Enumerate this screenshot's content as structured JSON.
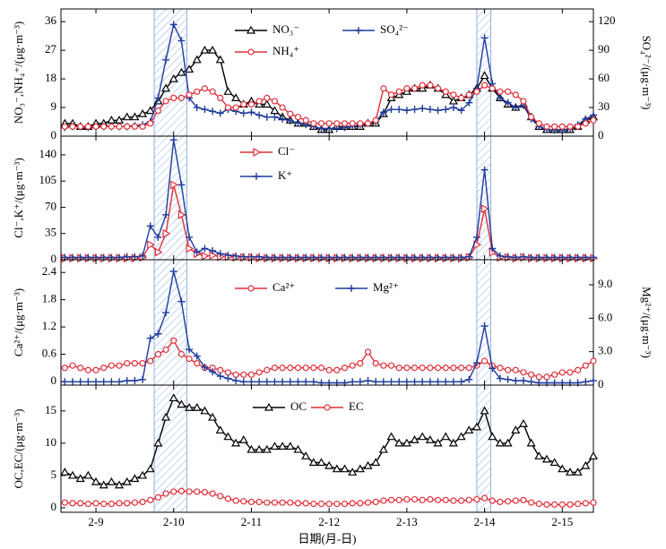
{
  "shaded_periods": [
    [
      9.75,
      10.17
    ],
    [
      13.9,
      14.08
    ]
  ],
  "chart_data": [
    {
      "type": "line",
      "xlim": [
        8.55,
        15.4
      ],
      "x": [
        8.6,
        8.7,
        8.8,
        8.9,
        9.0,
        9.1,
        9.2,
        9.3,
        9.4,
        9.5,
        9.6,
        9.7,
        9.8,
        9.9,
        10.0,
        10.1,
        10.2,
        10.3,
        10.4,
        10.5,
        10.6,
        10.7,
        10.8,
        10.9,
        11.0,
        11.1,
        11.2,
        11.3,
        11.4,
        11.5,
        11.6,
        11.7,
        11.8,
        11.9,
        12.0,
        12.1,
        12.2,
        12.3,
        12.4,
        12.5,
        12.6,
        12.7,
        12.8,
        12.9,
        13.0,
        13.1,
        13.2,
        13.3,
        13.4,
        13.5,
        13.6,
        13.7,
        13.8,
        13.9,
        14.0,
        14.1,
        14.2,
        14.3,
        14.4,
        14.5,
        14.6,
        14.7,
        14.8,
        14.9,
        15.0,
        15.1,
        15.2,
        15.3,
        15.4
      ],
      "ylabel": "NO₃⁻,NH₄⁺/(μg·m⁻³)",
      "y2label": "SO₄²⁻/(μg·m⁻³)",
      "ylim": [
        0,
        40
      ],
      "yticks": [
        0,
        9,
        18,
        27,
        36
      ],
      "y2lim": [
        0,
        133.3
      ],
      "y2ticks": [
        0,
        30,
        60,
        90,
        120
      ],
      "series": [
        {
          "name": "NO₃⁻",
          "color": "#000000",
          "marker": "triangle",
          "values": [
            4,
            4,
            3,
            3,
            4,
            4,
            5,
            5,
            6,
            6,
            7,
            8,
            11,
            15,
            18,
            20,
            21,
            24,
            27,
            27,
            24,
            14,
            12,
            10,
            11,
            10,
            10,
            8,
            6,
            5,
            4,
            4,
            3,
            2,
            2,
            3,
            3,
            3,
            3,
            4,
            4,
            7,
            12,
            13,
            14,
            15,
            15,
            16,
            15,
            13,
            11,
            12,
            13,
            15,
            19,
            15,
            12,
            10,
            9,
            10,
            6,
            3,
            2,
            2,
            2,
            2,
            3,
            5,
            6
          ]
        },
        {
          "name": "SO₄²⁻",
          "color": "#1f3c9c",
          "marker": "plus",
          "axis": "y2",
          "values": [
            9,
            10,
            10,
            9,
            9,
            10,
            10,
            10,
            10,
            11,
            12,
            15,
            40,
            80,
            117,
            100,
            40,
            30,
            28,
            26,
            24,
            28,
            26,
            24,
            25,
            22,
            20,
            20,
            18,
            16,
            14,
            12,
            10,
            8,
            8,
            8,
            9,
            10,
            12,
            14,
            15,
            25,
            28,
            28,
            27,
            28,
            29,
            28,
            27,
            28,
            30,
            27,
            35,
            50,
            103,
            55,
            40,
            35,
            30,
            32,
            18,
            10,
            7,
            6,
            6,
            8,
            12,
            18,
            22
          ]
        },
        {
          "name": "NH₄⁺",
          "color": "#e0303a",
          "marker": "circle",
          "values": [
            3,
            3,
            3,
            3,
            3,
            3,
            3,
            3,
            3,
            3,
            3,
            4,
            8,
            11,
            12,
            12,
            13,
            14,
            15,
            14,
            12,
            9,
            9,
            10,
            10,
            11,
            12,
            11,
            9,
            7,
            6,
            5,
            4,
            4,
            4,
            4,
            4,
            4,
            4,
            4,
            5,
            15,
            13,
            14,
            15,
            15,
            16,
            16,
            15,
            14,
            13,
            12,
            13,
            14,
            16,
            15,
            14,
            14,
            13,
            11,
            6,
            4,
            3,
            3,
            3,
            3,
            3,
            4,
            5
          ]
        }
      ]
    },
    {
      "type": "line",
      "xlim": [
        8.55,
        15.4
      ],
      "x": [
        8.6,
        8.7,
        8.8,
        8.9,
        9.0,
        9.1,
        9.2,
        9.3,
        9.4,
        9.5,
        9.6,
        9.7,
        9.8,
        9.9,
        10.0,
        10.1,
        10.2,
        10.3,
        10.4,
        10.5,
        10.6,
        10.7,
        10.8,
        10.9,
        11.0,
        11.1,
        11.2,
        11.3,
        11.4,
        11.5,
        11.6,
        11.7,
        11.8,
        11.9,
        12.0,
        12.1,
        12.2,
        12.3,
        12.4,
        12.5,
        12.6,
        12.7,
        12.8,
        12.9,
        13.0,
        13.1,
        13.2,
        13.3,
        13.4,
        13.5,
        13.6,
        13.7,
        13.8,
        13.9,
        14.0,
        14.1,
        14.2,
        14.3,
        14.4,
        14.5,
        14.6,
        14.7,
        14.8,
        14.9,
        15.0,
        15.1,
        15.2,
        15.3,
        15.4
      ],
      "ylabel": "Cl⁻,K⁺/(μg·m⁻³)",
      "ylim": [
        0,
        165
      ],
      "yticks": [
        0,
        35,
        70,
        105,
        140
      ],
      "series": [
        {
          "name": "Cl⁻",
          "color": "#e0303a",
          "marker": "triangle-right",
          "values": [
            2,
            2,
            2,
            2,
            2,
            2,
            2,
            2,
            2,
            2,
            3,
            20,
            10,
            35,
            100,
            60,
            15,
            8,
            5,
            6,
            4,
            4,
            3,
            3,
            3,
            2,
            2,
            2,
            2,
            2,
            2,
            2,
            2,
            2,
            2,
            2,
            2,
            2,
            2,
            2,
            2,
            2,
            2,
            2,
            2,
            2,
            2,
            2,
            2,
            2,
            2,
            2,
            3,
            20,
            68,
            10,
            3,
            3,
            2,
            3,
            2,
            2,
            2,
            2,
            2,
            2,
            2,
            2,
            2
          ]
        },
        {
          "name": "K⁺",
          "color": "#1f3c9c",
          "marker": "plus",
          "values": [
            3,
            3,
            3,
            3,
            3,
            3,
            3,
            3,
            4,
            4,
            5,
            45,
            30,
            60,
            160,
            100,
            30,
            10,
            15,
            12,
            8,
            6,
            5,
            4,
            4,
            4,
            3,
            3,
            3,
            3,
            3,
            3,
            3,
            3,
            3,
            3,
            3,
            3,
            3,
            3,
            3,
            3,
            3,
            3,
            3,
            3,
            3,
            3,
            3,
            3,
            3,
            3,
            4,
            30,
            120,
            15,
            5,
            4,
            3,
            4,
            3,
            3,
            3,
            3,
            3,
            3,
            3,
            3,
            3
          ]
        }
      ]
    },
    {
      "type": "line",
      "xlim": [
        8.55,
        15.4
      ],
      "x": [
        8.6,
        8.7,
        8.8,
        8.9,
        9.0,
        9.1,
        9.2,
        9.3,
        9.4,
        9.5,
        9.6,
        9.7,
        9.8,
        9.9,
        10.0,
        10.1,
        10.2,
        10.3,
        10.4,
        10.5,
        10.6,
        10.7,
        10.8,
        10.9,
        11.0,
        11.1,
        11.2,
        11.3,
        11.4,
        11.5,
        11.6,
        11.7,
        11.8,
        11.9,
        12.0,
        12.1,
        12.2,
        12.3,
        12.4,
        12.5,
        12.6,
        12.7,
        12.8,
        12.9,
        13.0,
        13.1,
        13.2,
        13.3,
        13.4,
        13.5,
        13.6,
        13.7,
        13.8,
        13.9,
        14.0,
        14.1,
        14.2,
        14.3,
        14.4,
        14.5,
        14.6,
        14.7,
        14.8,
        14.9,
        15.0,
        15.1,
        15.2,
        15.3,
        15.4
      ],
      "ylabel": "Ca²⁺/(μg·m⁻³)",
      "y2label": "Mg²⁺/(μg·m⁻³)",
      "ylim": [
        -0.08,
        2.68
      ],
      "yticks": [
        0,
        0.6,
        1.2,
        1.8,
        2.4
      ],
      "y2lim": [
        0,
        11.25
      ],
      "y2ticks": [
        0,
        {
          "value": 3,
          "label": "3.0"
        },
        {
          "value": 6,
          "label": "6.0"
        },
        {
          "value": 9,
          "label": "9.0"
        }
      ],
      "series": [
        {
          "name": "Ca²⁺",
          "color": "#e0303a",
          "marker": "circle",
          "values": [
            0.3,
            0.35,
            0.3,
            0.25,
            0.25,
            0.3,
            0.35,
            0.35,
            0.4,
            0.4,
            0.4,
            0.45,
            0.6,
            0.7,
            0.9,
            0.6,
            0.5,
            0.4,
            0.3,
            0.3,
            0.25,
            0.2,
            0.15,
            0.15,
            0.15,
            0.2,
            0.25,
            0.3,
            0.3,
            0.3,
            0.3,
            0.3,
            0.3,
            0.3,
            0.25,
            0.25,
            0.3,
            0.35,
            0.4,
            0.65,
            0.4,
            0.35,
            0.35,
            0.3,
            0.3,
            0.3,
            0.3,
            0.3,
            0.3,
            0.3,
            0.3,
            0.3,
            0.3,
            0.35,
            0.45,
            0.35,
            0.3,
            0.25,
            0.25,
            0.2,
            0.15,
            0.1,
            0.1,
            0.15,
            0.2,
            0.2,
            0.25,
            0.35,
            0.45
          ]
        },
        {
          "name": "Mg²⁺",
          "color": "#1f3c9c",
          "marker": "plus",
          "axis": "y2",
          "values": [
            0.3,
            0.3,
            0.3,
            0.3,
            0.3,
            0.3,
            0.3,
            0.3,
            0.4,
            0.4,
            0.5,
            4.2,
            4.6,
            6.5,
            10.2,
            7.5,
            3.2,
            2.6,
            1.6,
            1.2,
            0.8,
            0.6,
            0.4,
            0.3,
            0.3,
            0.3,
            0.3,
            0.3,
            0.3,
            0.3,
            0.3,
            0.3,
            0.3,
            0.2,
            0.2,
            0.2,
            0.2,
            0.3,
            0.3,
            0.4,
            0.3,
            0.3,
            0.3,
            0.3,
            0.3,
            0.3,
            0.3,
            0.3,
            0.3,
            0.3,
            0.3,
            0.3,
            0.5,
            2,
            5.3,
            1.5,
            0.6,
            0.5,
            0.4,
            0.4,
            0.3,
            0.2,
            0.2,
            0.2,
            0.2,
            0.2,
            0.2,
            0.3,
            0.4
          ]
        }
      ]
    },
    {
      "type": "line",
      "xlim": [
        8.55,
        15.4
      ],
      "x": [
        8.6,
        8.7,
        8.8,
        8.9,
        9.0,
        9.1,
        9.2,
        9.3,
        9.4,
        9.5,
        9.6,
        9.7,
        9.8,
        9.9,
        10.0,
        10.1,
        10.2,
        10.3,
        10.4,
        10.5,
        10.6,
        10.7,
        10.8,
        10.9,
        11.0,
        11.1,
        11.2,
        11.3,
        11.4,
        11.5,
        11.6,
        11.7,
        11.8,
        11.9,
        12.0,
        12.1,
        12.2,
        12.3,
        12.4,
        12.5,
        12.6,
        12.7,
        12.8,
        12.9,
        13.0,
        13.1,
        13.2,
        13.3,
        13.4,
        13.5,
        13.6,
        13.7,
        13.8,
        13.9,
        14.0,
        14.1,
        14.2,
        14.3,
        14.4,
        14.5,
        14.6,
        14.7,
        14.8,
        14.9,
        15.0,
        15.1,
        15.2,
        15.3,
        15.4
      ],
      "ylabel": "OC,EC/(μg·m⁻³)",
      "xlabel": "日期(月-日)",
      "ylim": [
        -0.7,
        19
      ],
      "yticks": [
        0,
        5,
        10,
        15
      ],
      "xticks": [
        {
          "value": 9,
          "label": "2-9"
        },
        {
          "value": 10,
          "label": "2-10"
        },
        {
          "value": 11,
          "label": "2-11"
        },
        {
          "value": 12,
          "label": "2-12"
        },
        {
          "value": 13,
          "label": "2-13"
        },
        {
          "value": 14,
          "label": "2-14"
        },
        {
          "value": 15,
          "label": "2-15"
        }
      ],
      "series": [
        {
          "name": "OC",
          "color": "#000000",
          "marker": "triangle",
          "values": [
            5.5,
            5,
            4.5,
            5,
            4,
            3.5,
            4,
            3.5,
            4,
            4.5,
            5,
            6,
            10,
            14,
            17,
            16,
            15.5,
            15.5,
            15,
            14,
            12,
            11,
            10,
            10.5,
            9,
            9,
            9,
            9.5,
            9.5,
            9.5,
            9,
            8,
            7,
            7,
            6.5,
            6,
            6,
            5.5,
            6,
            6.5,
            7,
            9,
            11,
            10,
            10,
            10.5,
            11,
            10.5,
            10,
            11,
            10,
            11,
            12,
            12.5,
            15,
            11,
            10,
            10,
            12,
            13,
            10,
            8,
            7.5,
            7,
            6,
            5.5,
            5.5,
            6.5,
            8
          ]
        },
        {
          "name": "EC",
          "color": "#e0303a",
          "marker": "circle",
          "values": [
            0.8,
            0.7,
            0.7,
            0.6,
            0.7,
            0.6,
            0.6,
            0.7,
            0.7,
            0.8,
            0.9,
            1.2,
            1.6,
            2.2,
            2.5,
            2.6,
            2.5,
            2.5,
            2.4,
            2.2,
            1.8,
            1.4,
            1.1,
            1,
            0.9,
            0.9,
            0.8,
            0.8,
            0.8,
            0.8,
            0.7,
            0.7,
            0.6,
            0.6,
            0.6,
            0.6,
            0.6,
            0.7,
            0.7,
            0.8,
            0.9,
            1.1,
            1.2,
            1.2,
            1.3,
            1.3,
            1.2,
            1.3,
            1.2,
            1.2,
            1.1,
            1.1,
            1.2,
            1.3,
            1.5,
            1.1,
            0.9,
            1,
            1.1,
            1.2,
            0.8,
            0.6,
            0.5,
            0.5,
            0.5,
            0.5,
            0.6,
            0.7,
            0.8
          ]
        }
      ]
    }
  ]
}
